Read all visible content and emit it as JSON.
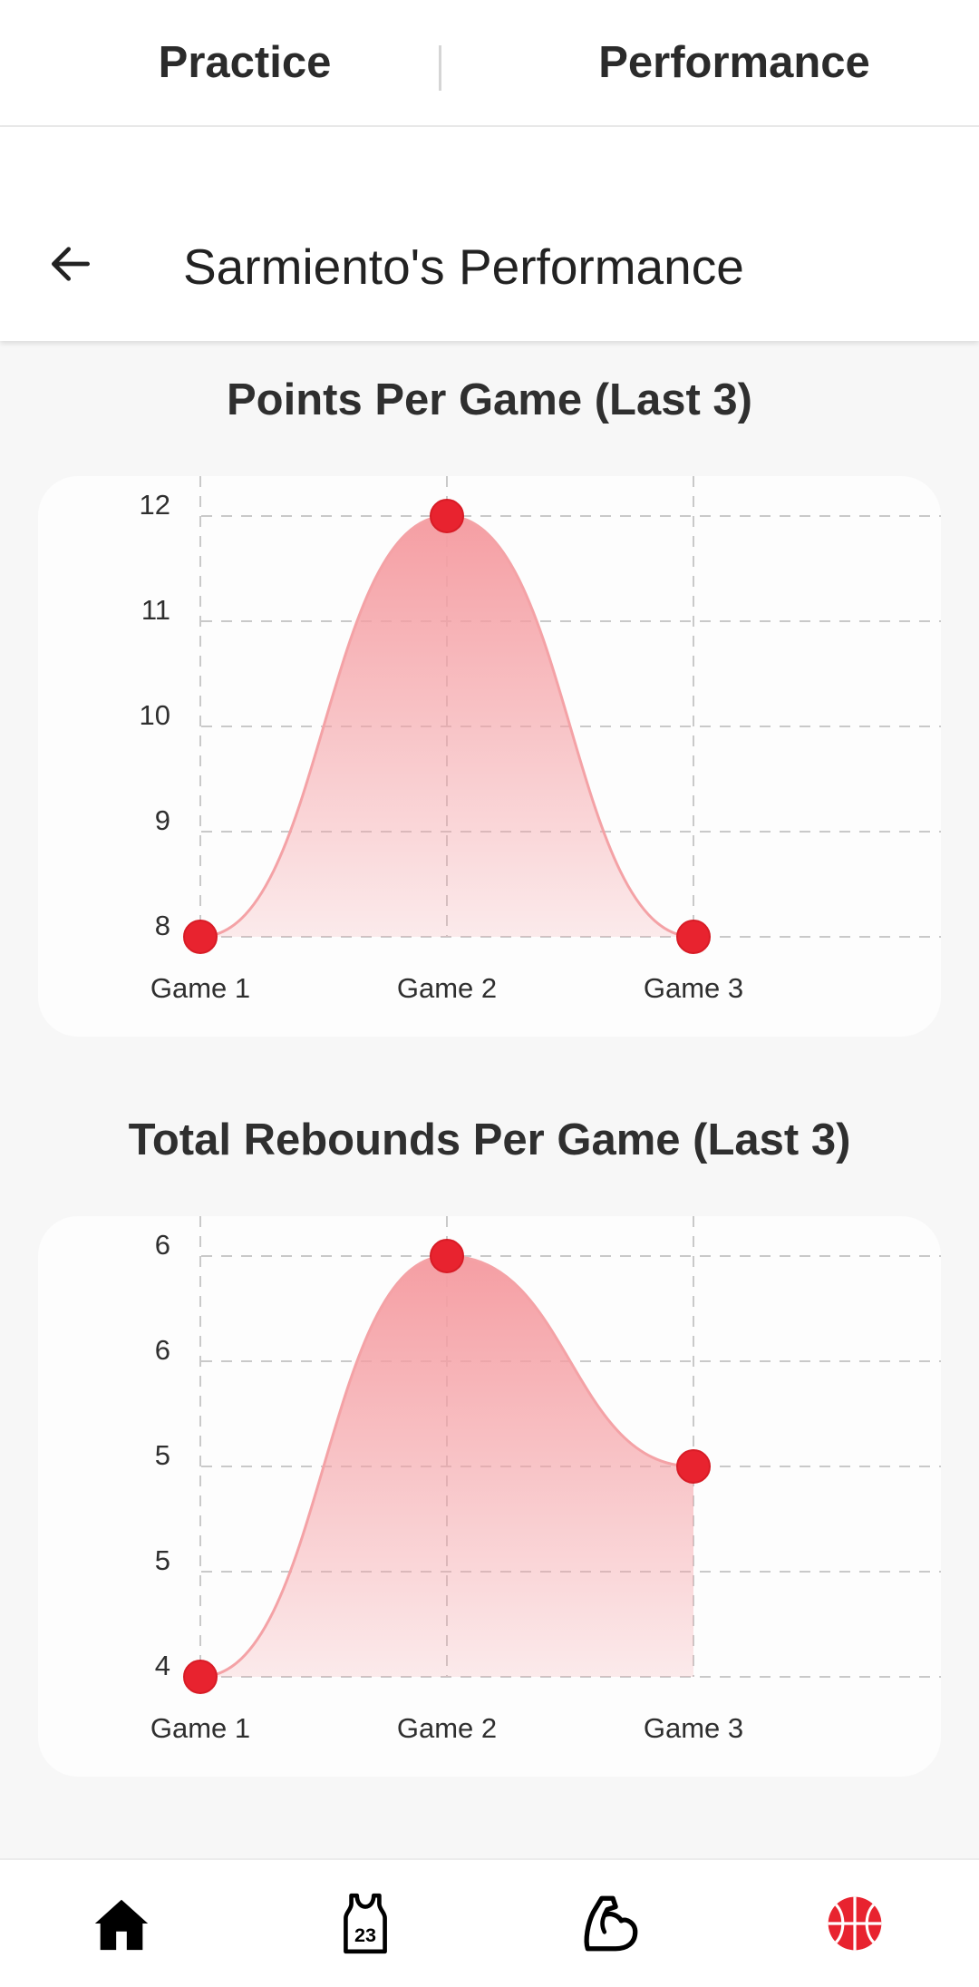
{
  "tabs": [
    {
      "label": "Practice"
    },
    {
      "label": "Performance"
    }
  ],
  "header": {
    "title": "Sarmiento's Performance",
    "back_icon": "arrow-left-icon"
  },
  "charts": [
    {
      "title": "Points Per Game (Last 3)"
    },
    {
      "title": "Total Rebounds Per Game (Last 3)"
    }
  ],
  "chart_data": [
    {
      "type": "area",
      "title": "Points Per Game (Last 3)",
      "categories": [
        "Game 1",
        "Game 2",
        "Game 3"
      ],
      "values": [
        8,
        12,
        8
      ],
      "ylim": [
        8,
        12
      ],
      "yticks": [
        12,
        11,
        10,
        9,
        8
      ],
      "ytick_labels": [
        "12",
        "11",
        "10",
        "9",
        "8"
      ],
      "grid": true,
      "color": "#e8232f",
      "fill_color": "#f59ea3"
    },
    {
      "type": "area",
      "title": "Total Rebounds Per Game (Last 3)",
      "categories": [
        "Game 1",
        "Game 2",
        "Game 3"
      ],
      "values": [
        4,
        6,
        5
      ],
      "ylim": [
        4,
        6
      ],
      "yticks": [
        6,
        5.5,
        5,
        4.5,
        4
      ],
      "ytick_labels": [
        "6",
        "6",
        "5",
        "5",
        "4"
      ],
      "grid": true,
      "color": "#e8232f",
      "fill_color": "#f59ea3"
    }
  ],
  "bottom_nav": [
    {
      "icon": "home-icon"
    },
    {
      "icon": "jersey-icon",
      "label": "23"
    },
    {
      "icon": "muscle-arm-icon"
    },
    {
      "icon": "basketball-icon"
    }
  ]
}
